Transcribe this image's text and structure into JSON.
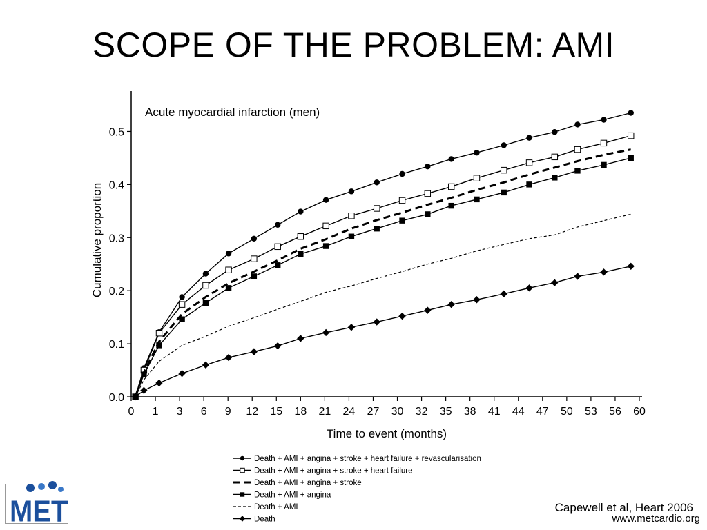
{
  "slide": {
    "title": "SCOPE OF THE PROBLEM: AMI",
    "citation": "Capewell et al, Heart 2006",
    "website": "www.metcardio.org",
    "logo_text": "MET"
  },
  "chart_data": {
    "type": "line",
    "title": "Acute myocardial infarction (men)",
    "xlabel": "Time to event (months)",
    "ylabel": "Cumulative proportion",
    "xlim": [
      0,
      60
    ],
    "ylim": [
      0,
      0.55
    ],
    "x_tick_labels": [
      "0",
      "1",
      "3",
      "6",
      "9",
      "12",
      "15",
      "18",
      "21",
      "24",
      "27",
      "30",
      "32",
      "35",
      "38",
      "41",
      "44",
      "47",
      "50",
      "53",
      "56",
      "60"
    ],
    "y_ticks": [
      0.0,
      0.1,
      0.2,
      0.3,
      0.4,
      0.5
    ],
    "y_tick_labels": [
      "0.0",
      "0.1",
      "0.2",
      "0.3",
      "0.4",
      "0.5"
    ],
    "grid": false,
    "legend_position": "bottom",
    "x": [
      0.5,
      1.5,
      3.3,
      6,
      8.8,
      11.5,
      14.5,
      17.3,
      20,
      23,
      26,
      29,
      32,
      35,
      37.8,
      40.8,
      44,
      47,
      50,
      52.7,
      55.8,
      59
    ],
    "series": [
      {
        "name": "Death + AMI + angina + stroke + heart failure + revascularisation",
        "style": "line-filled-circle",
        "values": [
          0.0,
          0.054,
          0.122,
          0.188,
          0.232,
          0.27,
          0.298,
          0.324,
          0.349,
          0.371,
          0.387,
          0.404,
          0.42,
          0.434,
          0.448,
          0.46,
          0.474,
          0.488,
          0.499,
          0.513,
          0.522,
          0.535
        ]
      },
      {
        "name": "Death + AMI + angina + stroke + heart failure",
        "style": "line-open-square",
        "values": [
          0.0,
          0.05,
          0.12,
          0.174,
          0.21,
          0.239,
          0.26,
          0.283,
          0.302,
          0.322,
          0.341,
          0.355,
          0.37,
          0.383,
          0.396,
          0.412,
          0.427,
          0.441,
          0.452,
          0.466,
          0.478,
          0.492
        ]
      },
      {
        "name": "Death + AMI + angina + stroke",
        "style": "dashed-thick",
        "values": [
          0.0,
          0.046,
          0.104,
          0.156,
          0.188,
          0.214,
          0.236,
          0.257,
          0.279,
          0.297,
          0.317,
          0.333,
          0.347,
          0.362,
          0.375,
          0.39,
          0.404,
          0.419,
          0.432,
          0.444,
          0.456,
          0.466
        ]
      },
      {
        "name": "Death + AMI + angina",
        "style": "line-filled-square",
        "values": [
          0.0,
          0.042,
          0.097,
          0.146,
          0.177,
          0.205,
          0.227,
          0.248,
          0.269,
          0.284,
          0.302,
          0.317,
          0.332,
          0.344,
          0.36,
          0.372,
          0.385,
          0.4,
          0.413,
          0.426,
          0.437,
          0.45
        ]
      },
      {
        "name": "Death + AMI",
        "style": "dashed-thin",
        "values": [
          0.0,
          0.032,
          0.067,
          0.097,
          0.114,
          0.133,
          0.149,
          0.165,
          0.18,
          0.197,
          0.209,
          0.223,
          0.236,
          0.25,
          0.261,
          0.275,
          0.287,
          0.298,
          0.305,
          0.32,
          0.332,
          0.344
        ]
      },
      {
        "name": "Death",
        "style": "line-filled-diamond",
        "values": [
          0.0,
          0.012,
          0.026,
          0.044,
          0.06,
          0.074,
          0.085,
          0.096,
          0.11,
          0.121,
          0.131,
          0.141,
          0.152,
          0.163,
          0.174,
          0.183,
          0.194,
          0.205,
          0.215,
          0.227,
          0.235,
          0.246
        ]
      }
    ]
  }
}
